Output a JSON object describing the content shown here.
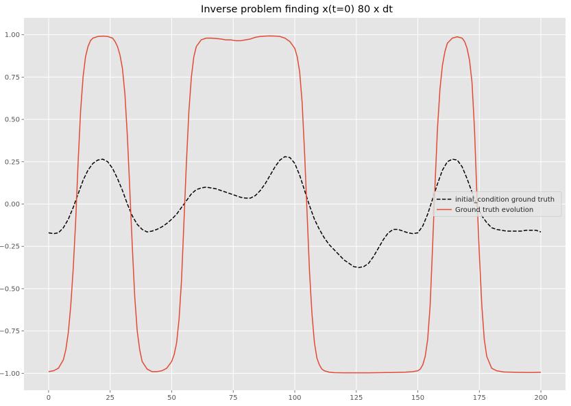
{
  "chart_data": {
    "type": "line",
    "title": "Inverse problem finding x(t=0) 80 x dt",
    "xlabel": "",
    "ylabel": "",
    "xlim": [
      -10,
      210
    ],
    "ylim": [
      -1.1,
      1.1
    ],
    "xticks": [
      0,
      25,
      50,
      75,
      100,
      125,
      150,
      175,
      200
    ],
    "xtick_labels": [
      "0",
      "25",
      "50",
      "75",
      "100",
      "125",
      "150",
      "175",
      "200"
    ],
    "yticks": [
      -1.0,
      -0.75,
      -0.5,
      -0.25,
      0.0,
      0.25,
      0.5,
      0.75,
      1.0
    ],
    "ytick_labels": [
      "−1.00",
      "−0.75",
      "−0.50",
      "−0.25",
      "0.00",
      "0.25",
      "0.50",
      "0.75",
      "1.00"
    ],
    "grid": true,
    "legend_position": "center-right",
    "series": [
      {
        "name": "initial_condition ground truth",
        "color": "#000000",
        "linestyle": "dashed",
        "x": [
          0,
          2,
          4,
          6,
          8,
          10,
          12,
          14,
          16,
          18,
          20,
          22,
          24,
          26,
          28,
          30,
          32,
          34,
          36,
          38,
          40,
          42,
          44,
          46,
          48,
          50,
          52,
          54,
          56,
          58,
          60,
          62,
          64,
          66,
          68,
          70,
          72,
          74,
          76,
          78,
          80,
          82,
          84,
          86,
          88,
          90,
          92,
          94,
          96,
          98,
          100,
          102,
          104,
          106,
          108,
          110,
          112,
          114,
          116,
          118,
          120,
          122,
          124,
          126,
          128,
          130,
          132,
          134,
          136,
          138,
          140,
          142,
          144,
          146,
          148,
          150,
          152,
          154,
          156,
          158,
          160,
          162,
          164,
          166,
          168,
          170,
          172,
          174,
          176,
          178,
          180,
          182,
          184,
          186,
          188,
          190,
          192,
          194,
          196,
          198,
          200
        ],
        "values": [
          -0.17,
          -0.175,
          -0.17,
          -0.14,
          -0.09,
          -0.02,
          0.06,
          0.14,
          0.2,
          0.24,
          0.26,
          0.265,
          0.25,
          0.21,
          0.15,
          0.08,
          0.0,
          -0.07,
          -0.12,
          -0.15,
          -0.165,
          -0.16,
          -0.15,
          -0.135,
          -0.115,
          -0.09,
          -0.06,
          -0.02,
          0.02,
          0.06,
          0.085,
          0.095,
          0.1,
          0.095,
          0.09,
          0.08,
          0.07,
          0.06,
          0.05,
          0.04,
          0.035,
          0.035,
          0.05,
          0.08,
          0.12,
          0.17,
          0.22,
          0.26,
          0.28,
          0.275,
          0.24,
          0.17,
          0.08,
          -0.01,
          -0.09,
          -0.15,
          -0.2,
          -0.24,
          -0.27,
          -0.3,
          -0.33,
          -0.35,
          -0.37,
          -0.375,
          -0.37,
          -0.35,
          -0.31,
          -0.26,
          -0.21,
          -0.17,
          -0.15,
          -0.15,
          -0.16,
          -0.17,
          -0.175,
          -0.17,
          -0.13,
          -0.06,
          0.03,
          0.12,
          0.2,
          0.25,
          0.265,
          0.26,
          0.22,
          0.15,
          0.07,
          -0.01,
          -0.07,
          -0.11,
          -0.14,
          -0.15,
          -0.155,
          -0.16,
          -0.16,
          -0.16,
          -0.16,
          -0.155,
          -0.155,
          -0.155,
          -0.165
        ]
      },
      {
        "name": "Ground truth evolution",
        "color": "#E24A33",
        "linestyle": "solid",
        "x": [
          0,
          2,
          4,
          6,
          7,
          8,
          9,
          10,
          11,
          12,
          13,
          14,
          15,
          16,
          17,
          18,
          20,
          22,
          24,
          26,
          27,
          28,
          29,
          30,
          31,
          32,
          33,
          34,
          35,
          36,
          37,
          38,
          40,
          42,
          44,
          46,
          48,
          50,
          51,
          52,
          53,
          54,
          55,
          56,
          57,
          58,
          59,
          60,
          62,
          64,
          66,
          68,
          70,
          72,
          74,
          76,
          78,
          80,
          82,
          84,
          86,
          88,
          90,
          92,
          94,
          96,
          98,
          100,
          101,
          102,
          103,
          104,
          105,
          106,
          107,
          108,
          109,
          110,
          111,
          112,
          114,
          116,
          120,
          125,
          130,
          135,
          140,
          145,
          148,
          150,
          151,
          152,
          153,
          154,
          155,
          156,
          157,
          158,
          159,
          160,
          161,
          162,
          164,
          166,
          168,
          169,
          170,
          171,
          172,
          173,
          174,
          175,
          176,
          177,
          178,
          180,
          182,
          185,
          190,
          195,
          200
        ],
        "values": [
          -0.99,
          -0.985,
          -0.97,
          -0.92,
          -0.86,
          -0.76,
          -0.6,
          -0.38,
          -0.1,
          0.25,
          0.55,
          0.75,
          0.87,
          0.93,
          0.965,
          0.98,
          0.99,
          0.992,
          0.99,
          0.98,
          0.96,
          0.93,
          0.88,
          0.8,
          0.65,
          0.4,
          0.08,
          -0.25,
          -0.55,
          -0.75,
          -0.86,
          -0.93,
          -0.975,
          -0.99,
          -0.99,
          -0.985,
          -0.97,
          -0.93,
          -0.89,
          -0.82,
          -0.68,
          -0.45,
          -0.1,
          0.25,
          0.55,
          0.75,
          0.87,
          0.93,
          0.97,
          0.98,
          0.98,
          0.978,
          0.975,
          0.97,
          0.97,
          0.965,
          0.965,
          0.97,
          0.975,
          0.985,
          0.99,
          0.992,
          0.993,
          0.992,
          0.99,
          0.98,
          0.96,
          0.92,
          0.87,
          0.78,
          0.6,
          0.3,
          -0.05,
          -0.4,
          -0.65,
          -0.82,
          -0.91,
          -0.95,
          -0.975,
          -0.985,
          -0.993,
          -0.996,
          -0.997,
          -0.997,
          -0.997,
          -0.996,
          -0.995,
          -0.993,
          -0.99,
          -0.985,
          -0.975,
          -0.95,
          -0.9,
          -0.8,
          -0.6,
          -0.25,
          0.12,
          0.45,
          0.68,
          0.82,
          0.9,
          0.95,
          0.98,
          0.988,
          0.98,
          0.96,
          0.92,
          0.85,
          0.72,
          0.45,
          0.05,
          -0.3,
          -0.6,
          -0.8,
          -0.9,
          -0.97,
          -0.985,
          -0.992,
          -0.994,
          -0.995,
          -0.994
        ]
      }
    ]
  }
}
